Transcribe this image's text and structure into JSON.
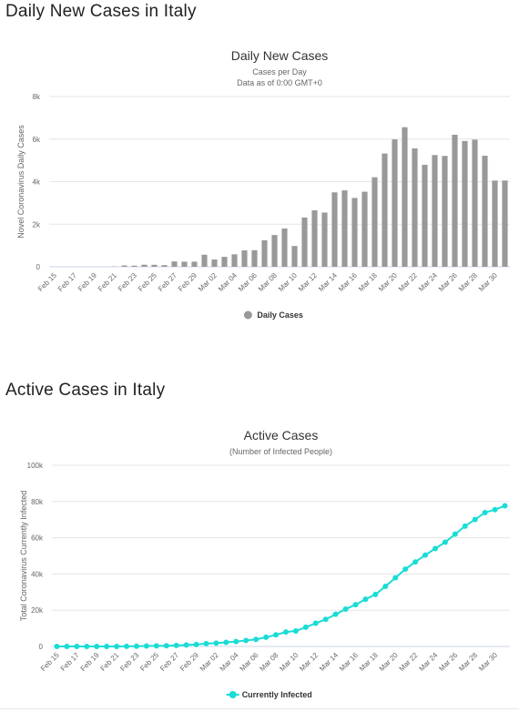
{
  "sections": [
    {
      "title": "Daily New Cases in Italy"
    },
    {
      "title": "Active Cases in Italy"
    }
  ],
  "colors": {
    "bar": "#999999",
    "line": "#1adcd6"
  },
  "chart_data": [
    {
      "type": "bar",
      "title": "Daily New Cases",
      "subtitle_lines": [
        "Cases per Day",
        "Data as of 0:00 GMT+0"
      ],
      "xlabel": "",
      "ylabel": "Novel Coronavirus Daily Cases",
      "ylim": [
        0,
        8000
      ],
      "yticks": [
        0,
        2000,
        4000,
        6000,
        8000
      ],
      "ytick_labels": [
        "0",
        "2k",
        "4k",
        "6k",
        "8k"
      ],
      "grid": true,
      "legend": "bottom-center",
      "categories": [
        "Feb 15",
        "Feb 16",
        "Feb 17",
        "Feb 18",
        "Feb 19",
        "Feb 20",
        "Feb 21",
        "Feb 22",
        "Feb 23",
        "Feb 24",
        "Feb 25",
        "Feb 26",
        "Feb 27",
        "Feb 28",
        "Feb 29",
        "Mar 01",
        "Mar 02",
        "Mar 03",
        "Mar 04",
        "Mar 05",
        "Mar 06",
        "Mar 07",
        "Mar 08",
        "Mar 09",
        "Mar 10",
        "Mar 11",
        "Mar 12",
        "Mar 13",
        "Mar 14",
        "Mar 15",
        "Mar 16",
        "Mar 17",
        "Mar 18",
        "Mar 19",
        "Mar 20",
        "Mar 21",
        "Mar 22",
        "Mar 23",
        "Mar 24",
        "Mar 25",
        "Mar 26",
        "Mar 27",
        "Mar 28",
        "Mar 29",
        "Mar 30",
        "Mar 31"
      ],
      "xtick_labels": [
        "Feb 15",
        "Feb 17",
        "Feb 19",
        "Feb 21",
        "Feb 23",
        "Feb 25",
        "Feb 27",
        "Feb 29",
        "Mar 02",
        "Mar 04",
        "Mar 06",
        "Mar 08",
        "Mar 10",
        "Mar 12",
        "Mar 14",
        "Mar 16",
        "Mar 18",
        "Mar 20",
        "Mar 22",
        "Mar 24",
        "Mar 26",
        "Mar 28",
        "Mar 30"
      ],
      "series": [
        {
          "name": "Daily Cases",
          "values": [
            0,
            0,
            0,
            0,
            0,
            0,
            14,
            62,
            53,
            97,
            93,
            78,
            250,
            238,
            240,
            566,
            342,
            466,
            587,
            769,
            778,
            1247,
            1492,
            1797,
            977,
            2313,
            2651,
            2547,
            3497,
            3590,
            3233,
            3526,
            4207,
            5322,
            5986,
            6557,
            5560,
            4789,
            5249,
            5210,
            6203,
            5909,
            5974,
            5217,
            4050,
            4053
          ]
        }
      ]
    },
    {
      "type": "line",
      "title": "Active Cases",
      "subtitle_lines": [
        "(Number of Infected People)"
      ],
      "xlabel": "",
      "ylabel": "Total Coronavirus Currently Infected",
      "ylim": [
        0,
        100000
      ],
      "yticks": [
        0,
        20000,
        40000,
        60000,
        80000,
        100000
      ],
      "ytick_labels": [
        "0",
        "20k",
        "40k",
        "60k",
        "80k",
        "100k"
      ],
      "grid": true,
      "legend": "bottom-center",
      "categories": [
        "Feb 15",
        "Feb 16",
        "Feb 17",
        "Feb 18",
        "Feb 19",
        "Feb 20",
        "Feb 21",
        "Feb 22",
        "Feb 23",
        "Feb 24",
        "Feb 25",
        "Feb 26",
        "Feb 27",
        "Feb 28",
        "Feb 29",
        "Mar 01",
        "Mar 02",
        "Mar 03",
        "Mar 04",
        "Mar 05",
        "Mar 06",
        "Mar 07",
        "Mar 08",
        "Mar 09",
        "Mar 10",
        "Mar 11",
        "Mar 12",
        "Mar 13",
        "Mar 14",
        "Mar 15",
        "Mar 16",
        "Mar 17",
        "Mar 18",
        "Mar 19",
        "Mar 20",
        "Mar 21",
        "Mar 22",
        "Mar 23",
        "Mar 24",
        "Mar 25",
        "Mar 26",
        "Mar 27",
        "Mar 28",
        "Mar 29",
        "Mar 30",
        "Mar 31"
      ],
      "xtick_labels": [
        "Feb 15",
        "Feb 17",
        "Feb 19",
        "Feb 21",
        "Feb 23",
        "Feb 25",
        "Feb 27",
        "Feb 29",
        "Mar 02",
        "Mar 04",
        "Mar 06",
        "Mar 08",
        "Mar 10",
        "Mar 12",
        "Mar 14",
        "Mar 16",
        "Mar 18",
        "Mar 20",
        "Mar 22",
        "Mar 24",
        "Mar 26",
        "Mar 28",
        "Mar 30"
      ],
      "series": [
        {
          "name": "Currently Infected",
          "values": [
            3,
            3,
            3,
            3,
            3,
            3,
            17,
            79,
            132,
            221,
            311,
            385,
            588,
            821,
            1049,
            1577,
            1835,
            2263,
            2706,
            3296,
            3916,
            5061,
            6387,
            7985,
            8514,
            10590,
            12839,
            14955,
            17750,
            20603,
            23073,
            26062,
            28710,
            33190,
            37860,
            42681,
            46638,
            50418,
            54030,
            57521,
            62013,
            66414,
            70065,
            73880,
            75528,
            77635
          ]
        }
      ]
    }
  ]
}
